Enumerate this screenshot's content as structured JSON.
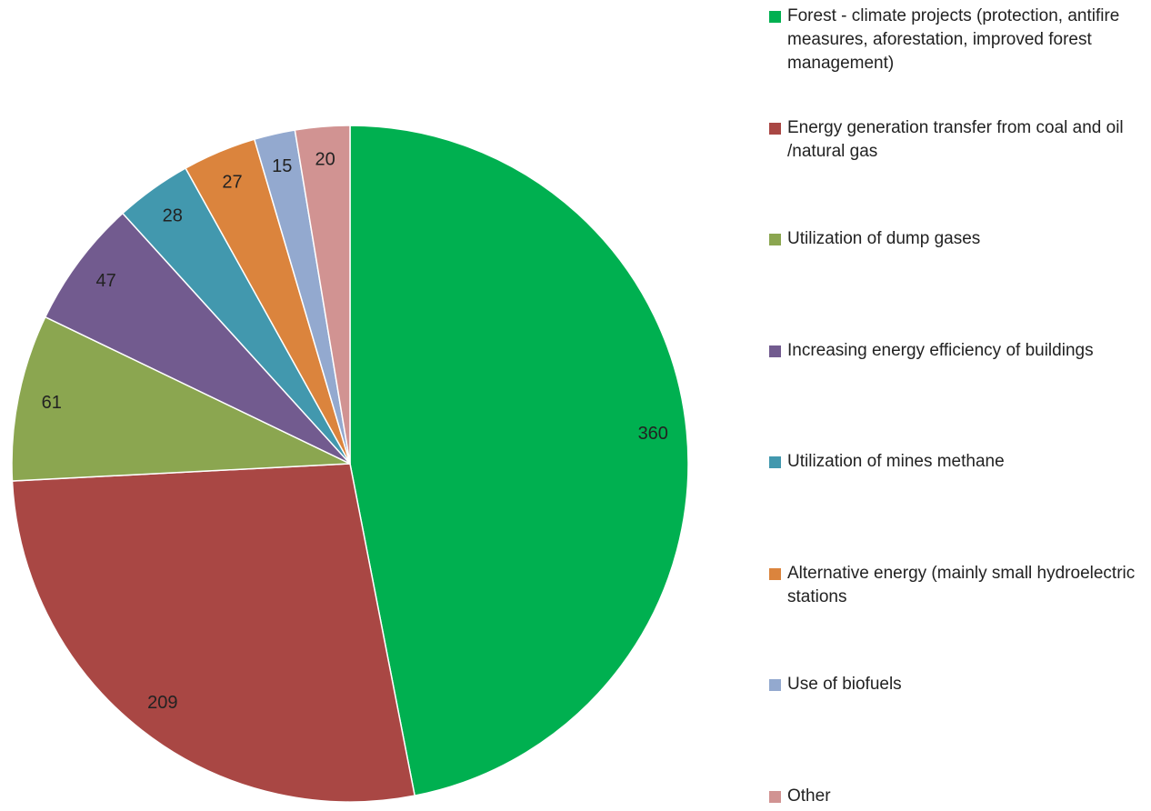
{
  "chart_data": {
    "type": "pie",
    "categories": [
      "Forest - climate projects (protection, antifire measures, aforestation, improved forest management)",
      "Energy generation transfer from coal and oil /natural  gas",
      "Utilization of dump gases",
      "Increasing energy efficiency of buildings",
      "Utilization of mines methane",
      "Alternative energy (mainly small hydroelectric stations",
      "Use of biofuels",
      "Other"
    ],
    "values": [
      360,
      209,
      61,
      47,
      28,
      27,
      15,
      20
    ],
    "colors": [
      "#00b050",
      "#a94744",
      "#8ba650",
      "#725b8f",
      "#4298ae",
      "#db843d",
      "#93a9cf",
      "#d19392"
    ],
    "legend": "right"
  }
}
